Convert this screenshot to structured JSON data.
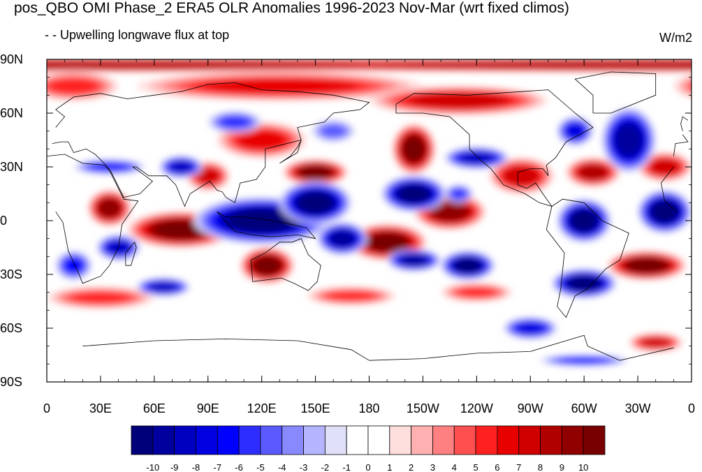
{
  "title": "pos_QBO OMI Phase_2 ERA5 OLR Anomalies 1996-2023 Nov-Mar (wrt fixed climos)",
  "subtitle": "- - Upwelling longwave flux at top",
  "units": "W/m2",
  "lat_labels": [
    "90N",
    "60N",
    "30N",
    "0",
    "30S",
    "60S",
    "90S"
  ],
  "lon_labels": [
    "0",
    "30E",
    "60E",
    "90E",
    "120E",
    "150E",
    "180",
    "150W",
    "120W",
    "90W",
    "60W",
    "30W",
    "0"
  ],
  "colorbar": {
    "labels": [
      "-10",
      "-9",
      "-8",
      "-7",
      "-6",
      "-5",
      "-4",
      "-3",
      "-2",
      "-1",
      "0",
      "1",
      "2",
      "3",
      "4",
      "5",
      "6",
      "7",
      "8",
      "9",
      "10"
    ],
    "colors": [
      "#00007a",
      "#00009e",
      "#0000c0",
      "#0000e0",
      "#0000ff",
      "#2d2dff",
      "#5a5aff",
      "#8888ff",
      "#b4b4ff",
      "#e0e0f8",
      "#ffffff",
      "#ffffff",
      "#ffdede",
      "#ffb0b0",
      "#ff8080",
      "#ff5050",
      "#ff2020",
      "#e80000",
      "#d00000",
      "#b00000",
      "#900000",
      "#780000"
    ]
  },
  "chart_data": {
    "type": "heatmap",
    "title": "pos_QBO OMI Phase_2 ERA5 OLR Anomalies 1996-2023 Nov-Mar (wrt fixed climos)",
    "subtitle": "- - Upwelling longwave flux at top",
    "units": "W/m2",
    "x_range": [
      0,
      360
    ],
    "y_range": [
      -90,
      90
    ],
    "levels": [
      -10,
      -9,
      -8,
      -7,
      -6,
      -5,
      -4,
      -3,
      -2,
      -1,
      0,
      1,
      2,
      3,
      4,
      5,
      6,
      7,
      8,
      9,
      10
    ],
    "anomaly_blobs": [
      {
        "lon": 0,
        "lat": 87,
        "rx": 360,
        "ry": 4,
        "value": 8
      },
      {
        "lon": 130,
        "lat": 75,
        "rx": 80,
        "ry": 8,
        "value": 6
      },
      {
        "lon": 230,
        "lat": 67,
        "rx": 50,
        "ry": 8,
        "value": 7
      },
      {
        "lon": 15,
        "lat": 75,
        "rx": 25,
        "ry": 8,
        "value": 5
      },
      {
        "lon": 205,
        "lat": 40,
        "rx": 12,
        "ry": 14,
        "value": 10
      },
      {
        "lon": 120,
        "lat": 45,
        "rx": 25,
        "ry": 10,
        "value": 6
      },
      {
        "lon": 90,
        "lat": 25,
        "rx": 12,
        "ry": 8,
        "value": 7
      },
      {
        "lon": 150,
        "lat": 27,
        "rx": 18,
        "ry": 7,
        "value": 10
      },
      {
        "lon": 35,
        "lat": 7,
        "rx": 12,
        "ry": 10,
        "value": 9
      },
      {
        "lon": 75,
        "lat": -5,
        "rx": 30,
        "ry": 10,
        "value": 10
      },
      {
        "lon": 123,
        "lat": -25,
        "rx": 15,
        "ry": 10,
        "value": 10
      },
      {
        "lon": 190,
        "lat": -12,
        "rx": 22,
        "ry": 10,
        "value": 10
      },
      {
        "lon": 225,
        "lat": 5,
        "rx": 20,
        "ry": 10,
        "value": 9
      },
      {
        "lon": 265,
        "lat": 25,
        "rx": 18,
        "ry": 10,
        "value": 7
      },
      {
        "lon": 305,
        "lat": 27,
        "rx": 15,
        "ry": 8,
        "value": 8
      },
      {
        "lon": 335,
        "lat": -25,
        "rx": 22,
        "ry": 8,
        "value": 10
      },
      {
        "lon": 345,
        "lat": 30,
        "rx": 15,
        "ry": 8,
        "value": 7
      },
      {
        "lon": 30,
        "lat": -43,
        "rx": 30,
        "ry": 6,
        "value": 5
      },
      {
        "lon": 170,
        "lat": -42,
        "rx": 25,
        "ry": 5,
        "value": 5
      },
      {
        "lon": 240,
        "lat": -40,
        "rx": 20,
        "ry": 5,
        "value": 5
      },
      {
        "lon": 340,
        "lat": -68,
        "rx": 15,
        "ry": 5,
        "value": 7
      },
      {
        "lon": 120,
        "lat": 0,
        "rx": 38,
        "ry": 13,
        "value": -10
      },
      {
        "lon": 150,
        "lat": 10,
        "rx": 20,
        "ry": 12,
        "value": -10
      },
      {
        "lon": 165,
        "lat": -10,
        "rx": 14,
        "ry": 9,
        "value": -9
      },
      {
        "lon": 205,
        "lat": 15,
        "rx": 18,
        "ry": 10,
        "value": -10
      },
      {
        "lon": 240,
        "lat": 35,
        "rx": 18,
        "ry": 6,
        "value": -8
      },
      {
        "lon": 205,
        "lat": -22,
        "rx": 15,
        "ry": 6,
        "value": -9
      },
      {
        "lon": 235,
        "lat": -25,
        "rx": 15,
        "ry": 8,
        "value": -10
      },
      {
        "lon": 300,
        "lat": 0,
        "rx": 15,
        "ry": 12,
        "value": -10
      },
      {
        "lon": 345,
        "lat": 5,
        "rx": 15,
        "ry": 12,
        "value": -10
      },
      {
        "lon": 300,
        "lat": -35,
        "rx": 18,
        "ry": 8,
        "value": -10
      },
      {
        "lon": 325,
        "lat": 45,
        "rx": 15,
        "ry": 18,
        "value": -9
      },
      {
        "lon": 295,
        "lat": 50,
        "rx": 10,
        "ry": 8,
        "value": -7
      },
      {
        "lon": 75,
        "lat": 30,
        "rx": 12,
        "ry": 6,
        "value": -8
      },
      {
        "lon": 35,
        "lat": 30,
        "rx": 20,
        "ry": 4,
        "value": -6
      },
      {
        "lon": 40,
        "lat": -15,
        "rx": 12,
        "ry": 7,
        "value": -8
      },
      {
        "lon": 65,
        "lat": -37,
        "rx": 15,
        "ry": 5,
        "value": -8
      },
      {
        "lon": 270,
        "lat": -60,
        "rx": 15,
        "ry": 6,
        "value": -7
      },
      {
        "lon": 300,
        "lat": -78,
        "rx": 25,
        "ry": 3,
        "value": -6
      },
      {
        "lon": 105,
        "lat": 55,
        "rx": 15,
        "ry": 6,
        "value": -5
      },
      {
        "lon": 15,
        "lat": -25,
        "rx": 10,
        "ry": 8,
        "value": -6
      },
      {
        "lon": 160,
        "lat": 50,
        "rx": 12,
        "ry": 6,
        "value": -4
      },
      {
        "lon": 230,
        "lat": 15,
        "rx": 8,
        "ry": 5,
        "value": -5
      }
    ]
  }
}
